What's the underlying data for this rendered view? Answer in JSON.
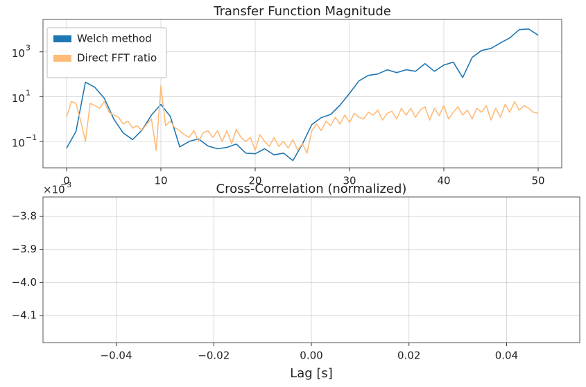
{
  "chart_data": [
    {
      "type": "line",
      "title": "Transfer Function Magnitude",
      "log_y": true,
      "grid": true,
      "legend": "upper left",
      "xlim": [
        -2.5,
        52.5
      ],
      "xticks": [
        0,
        10,
        20,
        30,
        40,
        50
      ],
      "ylim": [
        0.0066,
        28000
      ],
      "yticks": [
        {
          "value": 0.1,
          "label": "10",
          "exponent": "−1"
        },
        {
          "value": 10,
          "label": "10",
          "exponent": "1"
        },
        {
          "value": 1000,
          "label": "10",
          "exponent": "3"
        }
      ],
      "series": [
        {
          "name": "Welch method",
          "color": "#1f77b4",
          "x": [
            0,
            1,
            2,
            3,
            4,
            5,
            6,
            7,
            8,
            9,
            10,
            11,
            12,
            13,
            14,
            15,
            16,
            17,
            18,
            19,
            20,
            21,
            22,
            23,
            24,
            25,
            26,
            27,
            28,
            29,
            30,
            31,
            32,
            33,
            34,
            35,
            36,
            37,
            38,
            39,
            40,
            41,
            42,
            43,
            44,
            45,
            46,
            47,
            48,
            49,
            50
          ],
          "values": [
            0.05,
            0.28,
            44,
            26,
            8.5,
            1,
            0.24,
            0.12,
            0.32,
            1.5,
            4.5,
            1.3,
            0.057,
            0.1,
            0.13,
            0.062,
            0.047,
            0.054,
            0.076,
            0.03,
            0.028,
            0.047,
            0.025,
            0.03,
            0.014,
            0.076,
            0.56,
            1.15,
            1.6,
            4.2,
            14,
            50,
            89,
            102,
            158,
            118,
            158,
            135,
            295,
            135,
            257,
            347,
            71,
            562,
            1150,
            1420,
            2500,
            4200,
            9800,
            10500,
            5500
          ]
        },
        {
          "name": "Direct FFT ratio",
          "color": "#ffbb78",
          "x": [
            0,
            0.5,
            1,
            1.5,
            2,
            2.5,
            3,
            3.5,
            4,
            4.5,
            5,
            5.5,
            6,
            6.5,
            7,
            7.5,
            8,
            8.5,
            9,
            9.5,
            10,
            10.5,
            11,
            11.5,
            12,
            12.5,
            13,
            13.5,
            14,
            14.5,
            15,
            15.5,
            16,
            16.5,
            17,
            17.5,
            18,
            18.5,
            19,
            19.5,
            20,
            20.5,
            21,
            21.5,
            22,
            22.5,
            23,
            23.5,
            24,
            24.5,
            25,
            25.5,
            26,
            26.5,
            27,
            27.5,
            28,
            28.5,
            29,
            29.5,
            30,
            30.5,
            31,
            31.5,
            32,
            32.5,
            33,
            33.5,
            34,
            34.5,
            35,
            35.5,
            36,
            36.5,
            37,
            37.5,
            38,
            38.5,
            39,
            39.5,
            40,
            40.5,
            41,
            41.5,
            42,
            42.5,
            43,
            43.5,
            44,
            44.5,
            45,
            45.5,
            46,
            46.5,
            47,
            47.5,
            48,
            48.5,
            49,
            49.5,
            50
          ],
          "values": [
            1.2,
            6,
            5,
            0.8,
            0.1,
            5,
            4,
            3,
            6,
            2,
            1.5,
            1.2,
            0.6,
            0.8,
            0.4,
            0.5,
            0.3,
            0.6,
            1.0,
            0.04,
            30,
            0.5,
            0.8,
            0.4,
            0.3,
            0.2,
            0.15,
            0.3,
            0.1,
            0.25,
            0.3,
            0.15,
            0.3,
            0.1,
            0.3,
            0.08,
            0.35,
            0.15,
            0.1,
            0.15,
            0.04,
            0.2,
            0.1,
            0.06,
            0.15,
            0.06,
            0.1,
            0.05,
            0.12,
            0.04,
            0.08,
            0.03,
            0.3,
            0.6,
            0.3,
            0.8,
            0.5,
            1.2,
            0.6,
            1.5,
            0.7,
            1.8,
            1.2,
            1.0,
            2.0,
            1.5,
            2.5,
            0.9,
            1.8,
            2.2,
            1.0,
            3.0,
            1.5,
            3.0,
            1.2,
            2.5,
            3.5,
            0.9,
            3.0,
            1.4,
            4.0,
            1.0,
            2.0,
            3.5,
            1.5,
            2.5,
            1.0,
            3.0,
            2.0,
            4.0,
            0.9,
            3.0,
            1.2,
            4.5,
            2.0,
            6.0,
            2.5,
            4.0,
            3.0,
            2.0,
            1.8
          ]
        }
      ]
    },
    {
      "type": "line",
      "title": "Cross-Correlation (normalized)",
      "xlabel": "Lag [s]",
      "grid": true,
      "xlim": [
        -0.055,
        0.055
      ],
      "xticks": [
        {
          "value": -0.04,
          "label": "−0.04"
        },
        {
          "value": -0.02,
          "label": "−0.02"
        },
        {
          "value": 0,
          "label": "0.00"
        },
        {
          "value": 0.02,
          "label": "0.02"
        },
        {
          "value": 0.04,
          "label": "0.04"
        }
      ],
      "ylim": [
        -0.004182,
        -0.003741
      ],
      "yticks": [
        {
          "value": -0.0041,
          "label": "−4.1"
        },
        {
          "value": -0.004,
          "label": "−4.0"
        },
        {
          "value": -0.0039,
          "label": "−3.9"
        },
        {
          "value": -0.0038,
          "label": "−3.8"
        }
      ],
      "y_offset_text": "×10",
      "y_offset_exponent": "−3",
      "series": []
    }
  ]
}
